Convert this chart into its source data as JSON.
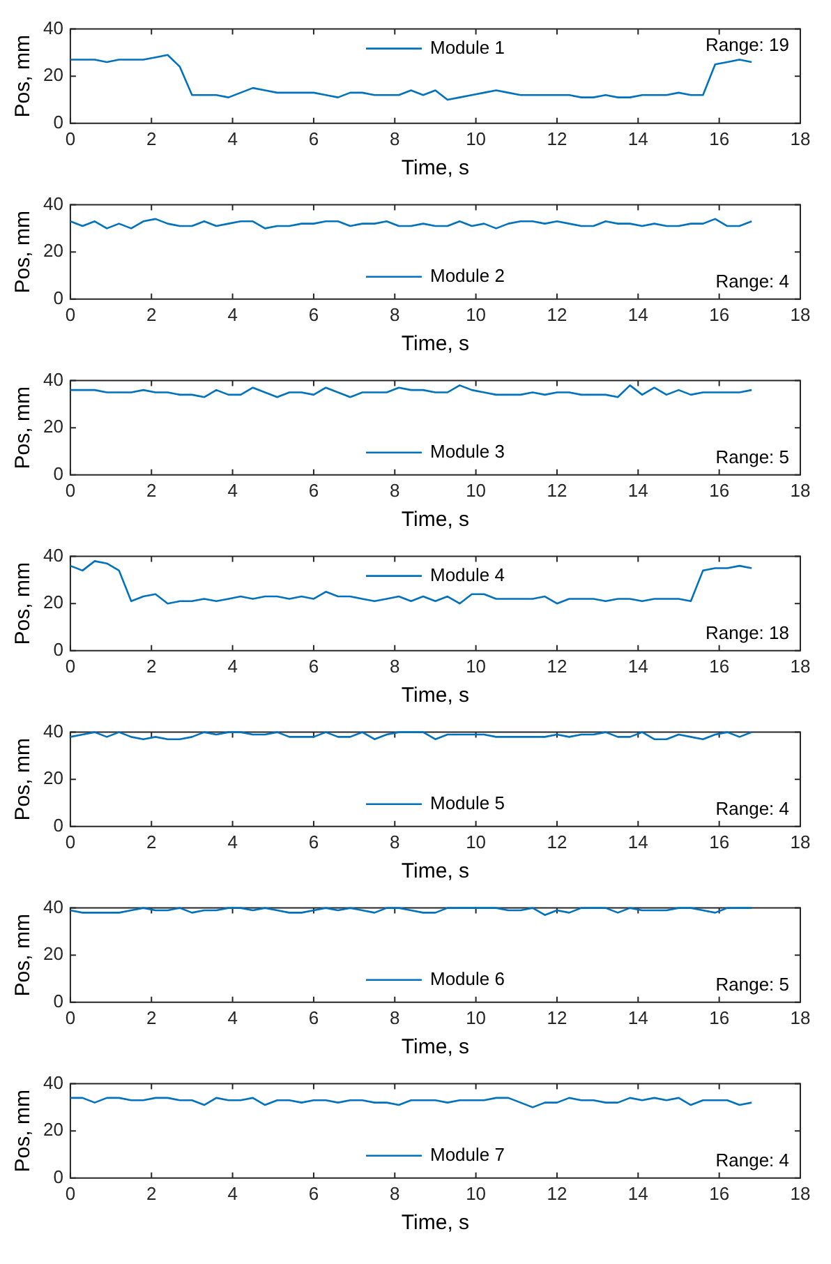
{
  "chart_data": [
    {
      "type": "line",
      "xlabel": "Time, s",
      "ylabel": "Pos, mm",
      "annotations": [
        "Range: 19"
      ],
      "legend": "top",
      "grid": false,
      "xlim": [
        0,
        18
      ],
      "ylim": [
        0,
        40
      ],
      "xticks": [
        0,
        2,
        4,
        6,
        8,
        10,
        12,
        14,
        16,
        18
      ],
      "yticks": [
        0,
        20,
        40
      ],
      "x": [
        0,
        0.3,
        0.6,
        0.9,
        1.2,
        1.5,
        1.8,
        2.1,
        2.4,
        2.7,
        3,
        3.3,
        3.6,
        3.9,
        4.2,
        4.5,
        4.8,
        5.1,
        5.4,
        5.7,
        6,
        6.3,
        6.6,
        6.9,
        7.2,
        7.5,
        7.8,
        8.1,
        8.4,
        8.7,
        9,
        9.3,
        9.6,
        9.9,
        10.2,
        10.5,
        10.8,
        11.1,
        11.4,
        11.7,
        12,
        12.3,
        12.6,
        12.9,
        13.2,
        13.5,
        13.8,
        14.1,
        14.4,
        14.7,
        15,
        15.3,
        15.6,
        15.9,
        16.2,
        16.5,
        16.8
      ],
      "series": [
        {
          "name": "Module 1",
          "color": "#0072bd",
          "values": [
            27,
            27,
            27,
            26,
            27,
            27,
            27,
            28,
            29,
            24,
            12,
            12,
            12,
            11,
            13,
            15,
            14,
            13,
            13,
            13,
            13,
            12,
            11,
            13,
            13,
            12,
            12,
            12,
            14,
            12,
            14,
            10,
            11,
            12,
            13,
            14,
            13,
            12,
            12,
            12,
            12,
            12,
            11,
            11,
            12,
            11,
            11,
            12,
            12,
            12,
            13,
            12,
            12,
            25,
            26,
            27,
            26
          ]
        }
      ]
    },
    {
      "type": "line",
      "xlabel": "Time, s",
      "ylabel": "Pos, mm",
      "annotations": [
        "Range: 4"
      ],
      "legend": "bottom",
      "grid": false,
      "xlim": [
        0,
        18
      ],
      "ylim": [
        0,
        40
      ],
      "xticks": [
        0,
        2,
        4,
        6,
        8,
        10,
        12,
        14,
        16,
        18
      ],
      "yticks": [
        0,
        20,
        40
      ],
      "x": [
        0,
        0.3,
        0.6,
        0.9,
        1.2,
        1.5,
        1.8,
        2.1,
        2.4,
        2.7,
        3,
        3.3,
        3.6,
        3.9,
        4.2,
        4.5,
        4.8,
        5.1,
        5.4,
        5.7,
        6,
        6.3,
        6.6,
        6.9,
        7.2,
        7.5,
        7.8,
        8.1,
        8.4,
        8.7,
        9,
        9.3,
        9.6,
        9.9,
        10.2,
        10.5,
        10.8,
        11.1,
        11.4,
        11.7,
        12,
        12.3,
        12.6,
        12.9,
        13.2,
        13.5,
        13.8,
        14.1,
        14.4,
        14.7,
        15,
        15.3,
        15.6,
        15.9,
        16.2,
        16.5,
        16.8
      ],
      "series": [
        {
          "name": "Module 2",
          "color": "#0072bd",
          "values": [
            33,
            31,
            33,
            30,
            32,
            30,
            33,
            34,
            32,
            31,
            31,
            33,
            31,
            32,
            33,
            33,
            30,
            31,
            31,
            32,
            32,
            33,
            33,
            31,
            32,
            32,
            33,
            31,
            31,
            32,
            31,
            31,
            33,
            31,
            32,
            30,
            32,
            33,
            33,
            32,
            33,
            32,
            31,
            31,
            33,
            32,
            32,
            31,
            32,
            31,
            31,
            32,
            32,
            34,
            31,
            31,
            33
          ]
        }
      ]
    },
    {
      "type": "line",
      "xlabel": "Time, s",
      "ylabel": "Pos, mm",
      "annotations": [
        "Range: 5"
      ],
      "legend": "bottom",
      "grid": false,
      "xlim": [
        0,
        18
      ],
      "ylim": [
        0,
        40
      ],
      "xticks": [
        0,
        2,
        4,
        6,
        8,
        10,
        12,
        14,
        16,
        18
      ],
      "yticks": [
        0,
        20,
        40
      ],
      "x": [
        0,
        0.3,
        0.6,
        0.9,
        1.2,
        1.5,
        1.8,
        2.1,
        2.4,
        2.7,
        3,
        3.3,
        3.6,
        3.9,
        4.2,
        4.5,
        4.8,
        5.1,
        5.4,
        5.7,
        6,
        6.3,
        6.6,
        6.9,
        7.2,
        7.5,
        7.8,
        8.1,
        8.4,
        8.7,
        9,
        9.3,
        9.6,
        9.9,
        10.2,
        10.5,
        10.8,
        11.1,
        11.4,
        11.7,
        12,
        12.3,
        12.6,
        12.9,
        13.2,
        13.5,
        13.8,
        14.1,
        14.4,
        14.7,
        15,
        15.3,
        15.6,
        15.9,
        16.2,
        16.5,
        16.8
      ],
      "series": [
        {
          "name": "Module 3",
          "color": "#0072bd",
          "values": [
            36,
            36,
            36,
            35,
            35,
            35,
            36,
            35,
            35,
            34,
            34,
            33,
            36,
            34,
            34,
            37,
            35,
            33,
            35,
            35,
            34,
            37,
            35,
            33,
            35,
            35,
            35,
            37,
            36,
            36,
            35,
            35,
            38,
            36,
            35,
            34,
            34,
            34,
            35,
            34,
            35,
            35,
            34,
            34,
            34,
            33,
            38,
            34,
            37,
            34,
            36,
            34,
            35,
            35,
            35,
            35,
            36
          ]
        }
      ]
    },
    {
      "type": "line",
      "xlabel": "Time, s",
      "ylabel": "Pos, mm",
      "annotations": [
        "Range: 18"
      ],
      "legend": "top",
      "grid": false,
      "xlim": [
        0,
        18
      ],
      "ylim": [
        0,
        40
      ],
      "xticks": [
        0,
        2,
        4,
        6,
        8,
        10,
        12,
        14,
        16,
        18
      ],
      "yticks": [
        0,
        20,
        40
      ],
      "x": [
        0,
        0.3,
        0.6,
        0.9,
        1.2,
        1.5,
        1.8,
        2.1,
        2.4,
        2.7,
        3,
        3.3,
        3.6,
        3.9,
        4.2,
        4.5,
        4.8,
        5.1,
        5.4,
        5.7,
        6,
        6.3,
        6.6,
        6.9,
        7.2,
        7.5,
        7.8,
        8.1,
        8.4,
        8.7,
        9,
        9.3,
        9.6,
        9.9,
        10.2,
        10.5,
        10.8,
        11.1,
        11.4,
        11.7,
        12,
        12.3,
        12.6,
        12.9,
        13.2,
        13.5,
        13.8,
        14.1,
        14.4,
        14.7,
        15,
        15.3,
        15.6,
        15.9,
        16.2,
        16.5,
        16.8
      ],
      "series": [
        {
          "name": "Module 4",
          "color": "#0072bd",
          "values": [
            36,
            34,
            38,
            37,
            34,
            21,
            23,
            24,
            20,
            21,
            21,
            22,
            21,
            22,
            23,
            22,
            23,
            23,
            22,
            23,
            22,
            25,
            23,
            23,
            22,
            21,
            22,
            23,
            21,
            23,
            21,
            23,
            20,
            24,
            24,
            22,
            22,
            22,
            22,
            23,
            20,
            22,
            22,
            22,
            21,
            22,
            22,
            21,
            22,
            22,
            22,
            21,
            34,
            35,
            35,
            36,
            35
          ]
        }
      ]
    },
    {
      "type": "line",
      "xlabel": "Time, s",
      "ylabel": "Pos, mm",
      "annotations": [
        "Range: 4"
      ],
      "legend": "bottom",
      "grid": false,
      "xlim": [
        0,
        18
      ],
      "ylim": [
        0,
        40
      ],
      "xticks": [
        0,
        2,
        4,
        6,
        8,
        10,
        12,
        14,
        16,
        18
      ],
      "yticks": [
        0,
        20,
        40
      ],
      "x": [
        0,
        0.3,
        0.6,
        0.9,
        1.2,
        1.5,
        1.8,
        2.1,
        2.4,
        2.7,
        3,
        3.3,
        3.6,
        3.9,
        4.2,
        4.5,
        4.8,
        5.1,
        5.4,
        5.7,
        6,
        6.3,
        6.6,
        6.9,
        7.2,
        7.5,
        7.8,
        8.1,
        8.4,
        8.7,
        9,
        9.3,
        9.6,
        9.9,
        10.2,
        10.5,
        10.8,
        11.1,
        11.4,
        11.7,
        12,
        12.3,
        12.6,
        12.9,
        13.2,
        13.5,
        13.8,
        14.1,
        14.4,
        14.7,
        15,
        15.3,
        15.6,
        15.9,
        16.2,
        16.5,
        16.8
      ],
      "series": [
        {
          "name": "Module 5",
          "color": "#0072bd",
          "values": [
            38,
            39,
            40,
            38,
            40,
            38,
            37,
            38,
            37,
            37,
            38,
            40,
            39,
            40,
            40,
            39,
            39,
            40,
            38,
            38,
            38,
            40,
            38,
            38,
            40,
            37,
            39,
            40,
            40,
            40,
            37,
            39,
            39,
            39,
            39,
            38,
            38,
            38,
            38,
            38,
            39,
            38,
            39,
            39,
            40,
            38,
            38,
            40,
            37,
            37,
            39,
            38,
            37,
            39,
            40,
            38,
            40
          ]
        }
      ]
    },
    {
      "type": "line",
      "xlabel": "Time, s",
      "ylabel": "Pos, mm",
      "annotations": [
        "Range: 5"
      ],
      "legend": "bottom",
      "grid": false,
      "xlim": [
        0,
        18
      ],
      "ylim": [
        0,
        40
      ],
      "xticks": [
        0,
        2,
        4,
        6,
        8,
        10,
        12,
        14,
        16,
        18
      ],
      "yticks": [
        0,
        20,
        40
      ],
      "x": [
        0,
        0.3,
        0.6,
        0.9,
        1.2,
        1.5,
        1.8,
        2.1,
        2.4,
        2.7,
        3,
        3.3,
        3.6,
        3.9,
        4.2,
        4.5,
        4.8,
        5.1,
        5.4,
        5.7,
        6,
        6.3,
        6.6,
        6.9,
        7.2,
        7.5,
        7.8,
        8.1,
        8.4,
        8.7,
        9,
        9.3,
        9.6,
        9.9,
        10.2,
        10.5,
        10.8,
        11.1,
        11.4,
        11.7,
        12,
        12.3,
        12.6,
        12.9,
        13.2,
        13.5,
        13.8,
        14.1,
        14.4,
        14.7,
        15,
        15.3,
        15.6,
        15.9,
        16.2,
        16.5,
        16.8
      ],
      "series": [
        {
          "name": "Module 6",
          "color": "#0072bd",
          "values": [
            39,
            38,
            38,
            38,
            38,
            39,
            40,
            39,
            39,
            40,
            38,
            39,
            39,
            40,
            40,
            39,
            40,
            39,
            38,
            38,
            39,
            40,
            39,
            40,
            39,
            38,
            40,
            40,
            39,
            38,
            38,
            40,
            40,
            40,
            40,
            40,
            39,
            39,
            40,
            37,
            39,
            38,
            40,
            40,
            40,
            38,
            40,
            39,
            39,
            39,
            40,
            40,
            39,
            38,
            40,
            40,
            40
          ]
        }
      ]
    },
    {
      "type": "line",
      "xlabel": "Time, s",
      "ylabel": "Pos, mm",
      "annotations": [
        "Range: 4"
      ],
      "legend": "bottom",
      "grid": false,
      "xlim": [
        0,
        18
      ],
      "ylim": [
        0,
        40
      ],
      "xticks": [
        0,
        2,
        4,
        6,
        8,
        10,
        12,
        14,
        16,
        18
      ],
      "yticks": [
        0,
        20,
        40
      ],
      "x": [
        0,
        0.3,
        0.6,
        0.9,
        1.2,
        1.5,
        1.8,
        2.1,
        2.4,
        2.7,
        3,
        3.3,
        3.6,
        3.9,
        4.2,
        4.5,
        4.8,
        5.1,
        5.4,
        5.7,
        6,
        6.3,
        6.6,
        6.9,
        7.2,
        7.5,
        7.8,
        8.1,
        8.4,
        8.7,
        9,
        9.3,
        9.6,
        9.9,
        10.2,
        10.5,
        10.8,
        11.1,
        11.4,
        11.7,
        12,
        12.3,
        12.6,
        12.9,
        13.2,
        13.5,
        13.8,
        14.1,
        14.4,
        14.7,
        15,
        15.3,
        15.6,
        15.9,
        16.2,
        16.5,
        16.8
      ],
      "series": [
        {
          "name": "Module 7",
          "color": "#0072bd",
          "values": [
            34,
            34,
            32,
            34,
            34,
            33,
            33,
            34,
            34,
            33,
            33,
            31,
            34,
            33,
            33,
            34,
            31,
            33,
            33,
            32,
            33,
            33,
            32,
            33,
            33,
            32,
            32,
            31,
            33,
            33,
            33,
            32,
            33,
            33,
            33,
            34,
            34,
            32,
            30,
            32,
            32,
            34,
            33,
            33,
            32,
            32,
            34,
            33,
            34,
            33,
            34,
            31,
            33,
            33,
            33,
            31,
            32
          ]
        }
      ]
    }
  ]
}
